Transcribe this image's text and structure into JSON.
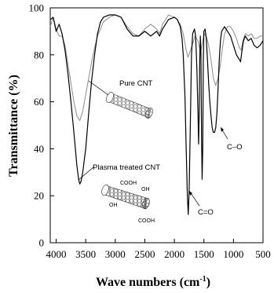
{
  "chart_data": {
    "type": "line",
    "xlabel": "Wave numbers (cm",
    "xlabel_sup": "-1",
    "xlabel_tail": ")",
    "ylabel": "Transmittance (%)",
    "xlim": [
      4100,
      500
    ],
    "ylim": [
      0,
      100
    ],
    "x_ticks": [
      "4000",
      "3500",
      "3000",
      "2500",
      "2000",
      "1500",
      "1000",
      "500"
    ],
    "y_ticks": [
      "0",
      "20",
      "40",
      "60",
      "80",
      "100"
    ],
    "x_tick_values": [
      4000,
      3500,
      3000,
      2500,
      2000,
      1500,
      1000,
      500
    ],
    "y_tick_values": [
      0,
      20,
      40,
      60,
      80,
      100
    ],
    "grid": false,
    "series": [
      {
        "name": "Pure CNT",
        "color": "#8c8c8c",
        "points": [
          [
            4100,
            92
          ],
          [
            4050,
            96
          ],
          [
            4000,
            91
          ],
          [
            3950,
            88
          ],
          [
            3900,
            88
          ],
          [
            3850,
            84
          ],
          [
            3800,
            76
          ],
          [
            3750,
            68
          ],
          [
            3700,
            60
          ],
          [
            3650,
            54
          ],
          [
            3600,
            52
          ],
          [
            3550,
            56
          ],
          [
            3500,
            63
          ],
          [
            3450,
            70
          ],
          [
            3400,
            77
          ],
          [
            3350,
            83
          ],
          [
            3300,
            88
          ],
          [
            3250,
            91
          ],
          [
            3200,
            94
          ],
          [
            3100,
            96
          ],
          [
            3000,
            97
          ],
          [
            2900,
            96
          ],
          [
            2800,
            92
          ],
          [
            2700,
            89
          ],
          [
            2600,
            88
          ],
          [
            2500,
            91
          ],
          [
            2400,
            93
          ],
          [
            2300,
            91
          ],
          [
            2250,
            89
          ],
          [
            2200,
            93
          ],
          [
            2100,
            97
          ],
          [
            2000,
            96
          ],
          [
            1950,
            95
          ],
          [
            1900,
            93
          ],
          [
            1850,
            89
          ],
          [
            1800,
            82
          ],
          [
            1770,
            79
          ],
          [
            1740,
            81
          ],
          [
            1700,
            84
          ],
          [
            1650,
            88
          ],
          [
            1600,
            86
          ],
          [
            1560,
            81
          ],
          [
            1540,
            83
          ],
          [
            1500,
            89
          ],
          [
            1460,
            88
          ],
          [
            1420,
            84
          ],
          [
            1380,
            78
          ],
          [
            1340,
            70
          ],
          [
            1300,
            67
          ],
          [
            1260,
            70
          ],
          [
            1220,
            76
          ],
          [
            1180,
            84
          ],
          [
            1150,
            89
          ],
          [
            1100,
            92
          ],
          [
            1050,
            92
          ],
          [
            1000,
            90
          ],
          [
            950,
            87
          ],
          [
            900,
            83
          ],
          [
            870,
            82
          ],
          [
            840,
            86
          ],
          [
            800,
            89
          ],
          [
            750,
            88
          ],
          [
            700,
            89
          ],
          [
            650,
            87
          ],
          [
            600,
            87
          ],
          [
            550,
            88
          ],
          [
            500,
            88
          ]
        ]
      },
      {
        "name": "Plasma treated CNT",
        "color": "#000000",
        "points": [
          [
            4100,
            95
          ],
          [
            4050,
            96
          ],
          [
            4000,
            90
          ],
          [
            3950,
            93
          ],
          [
            3900,
            89
          ],
          [
            3850,
            82
          ],
          [
            3800,
            72
          ],
          [
            3750,
            60
          ],
          [
            3700,
            47
          ],
          [
            3650,
            33
          ],
          [
            3620,
            27
          ],
          [
            3600,
            25
          ],
          [
            3580,
            26
          ],
          [
            3550,
            30
          ],
          [
            3500,
            40
          ],
          [
            3450,
            55
          ],
          [
            3400,
            69
          ],
          [
            3350,
            80
          ],
          [
            3300,
            89
          ],
          [
            3250,
            94
          ],
          [
            3200,
            96
          ],
          [
            3100,
            97
          ],
          [
            3000,
            97
          ],
          [
            2900,
            96
          ],
          [
            2800,
            91
          ],
          [
            2700,
            88
          ],
          [
            2600,
            88
          ],
          [
            2500,
            90
          ],
          [
            2400,
            88
          ],
          [
            2300,
            90
          ],
          [
            2250,
            88
          ],
          [
            2200,
            91
          ],
          [
            2100,
            95
          ],
          [
            2000,
            96
          ],
          [
            1950,
            95
          ],
          [
            1900,
            92
          ],
          [
            1870,
            87
          ],
          [
            1850,
            80
          ],
          [
            1820,
            62
          ],
          [
            1800,
            40
          ],
          [
            1780,
            20
          ],
          [
            1765,
            12
          ],
          [
            1750,
            22
          ],
          [
            1730,
            50
          ],
          [
            1710,
            80
          ],
          [
            1690,
            89
          ],
          [
            1660,
            91
          ],
          [
            1640,
            88
          ],
          [
            1620,
            75
          ],
          [
            1600,
            55
          ],
          [
            1590,
            42
          ],
          [
            1580,
            55
          ],
          [
            1570,
            78
          ],
          [
            1560,
            88
          ],
          [
            1550,
            80
          ],
          [
            1540,
            45
          ],
          [
            1530,
            27
          ],
          [
            1520,
            40
          ],
          [
            1510,
            78
          ],
          [
            1500,
            90
          ],
          [
            1480,
            91
          ],
          [
            1460,
            87
          ],
          [
            1440,
            78
          ],
          [
            1420,
            68
          ],
          [
            1400,
            60
          ],
          [
            1380,
            54
          ],
          [
            1360,
            49
          ],
          [
            1340,
            47
          ],
          [
            1320,
            47
          ],
          [
            1300,
            49
          ],
          [
            1280,
            55
          ],
          [
            1260,
            66
          ],
          [
            1240,
            78
          ],
          [
            1220,
            86
          ],
          [
            1200,
            90
          ],
          [
            1150,
            92
          ],
          [
            1100,
            90
          ],
          [
            1050,
            88
          ],
          [
            1000,
            84
          ],
          [
            950,
            80
          ],
          [
            900,
            78
          ],
          [
            880,
            77
          ],
          [
            860,
            81
          ],
          [
            830,
            86
          ],
          [
            800,
            88
          ],
          [
            750,
            86
          ],
          [
            700,
            87
          ],
          [
            650,
            84
          ],
          [
            600,
            83
          ],
          [
            550,
            84
          ],
          [
            500,
            86
          ]
        ]
      }
    ],
    "annotations": [
      {
        "text": "Pure CNT",
        "x": 3150,
        "y": 67
      },
      {
        "text": "Plasma treated CNT",
        "x": 3450,
        "y": 32
      },
      {
        "text": "C=O",
        "x": 1550,
        "y": 12
      },
      {
        "text": "C–O",
        "x": 1100,
        "y": 40
      }
    ],
    "inset_labels": {
      "cooh_top": "COOH",
      "oh_right": "OH",
      "oh_left": "OH",
      "cooh_bottom": "COOH"
    }
  }
}
